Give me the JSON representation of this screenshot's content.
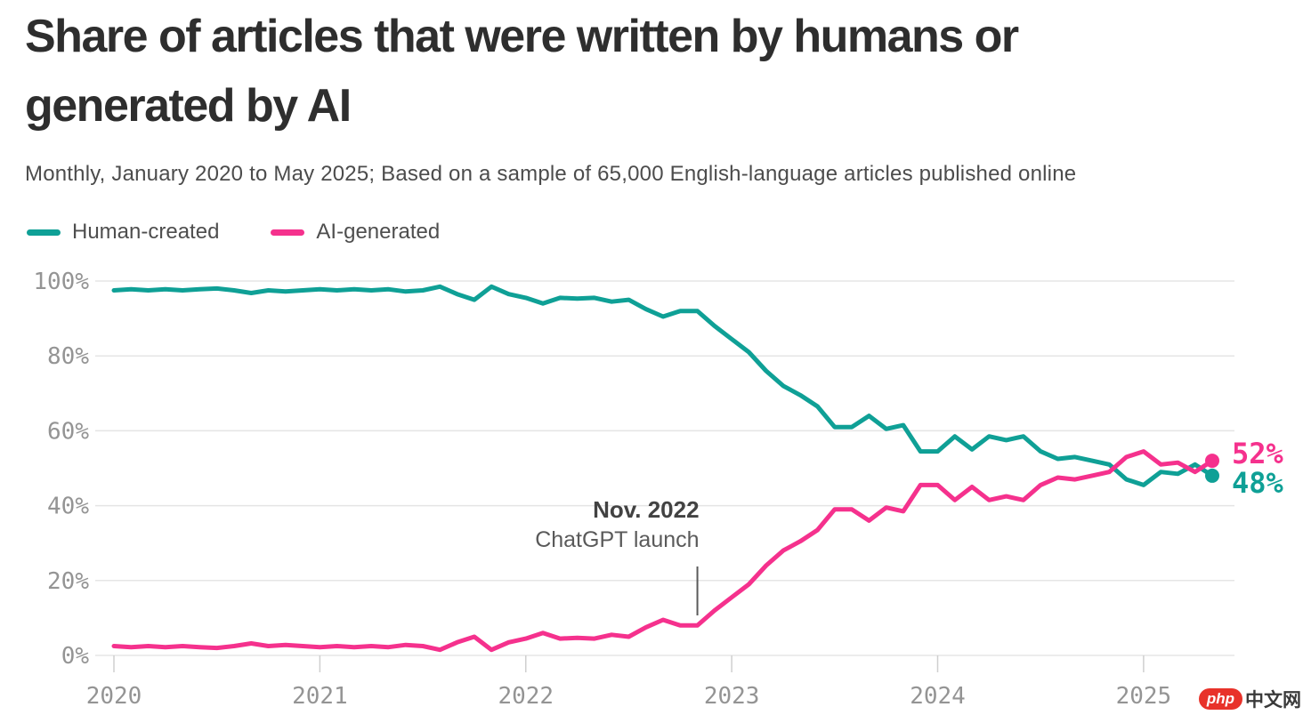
{
  "page": {
    "title": "Share of articles that were written by humans or generated by AI",
    "subtitle": "Monthly, January 2020 to May 2025; Based on a sample of 65,000 English-language articles published online"
  },
  "legend": {
    "items": [
      {
        "label": "Human-created",
        "color": "#0FA096"
      },
      {
        "label": "AI-generated",
        "color": "#F5318D"
      }
    ]
  },
  "annotation": {
    "line1": "Nov. 2022",
    "line2": "ChatGPT launch",
    "x_value": "2022-11"
  },
  "end_labels": [
    {
      "series": "AI-generated",
      "text": "52%",
      "color": "#F5318D"
    },
    {
      "series": "Human-created",
      "text": "48%",
      "color": "#0FA096"
    }
  ],
  "watermark": {
    "badge": "php",
    "text": "中文网"
  },
  "chart_data": {
    "type": "line",
    "title": "Share of articles that were written by humans or generated by AI",
    "subtitle": "Monthly, January 2020 to May 2025; Based on a sample of 65,000 English-language articles published online",
    "xlabel": "",
    "ylabel": "",
    "ylim": [
      0,
      100
    ],
    "grid": "horizontal",
    "legend_position": "top-left",
    "yticks": [
      {
        "value": 100,
        "label": "100%"
      },
      {
        "value": 80,
        "label": "80%"
      },
      {
        "value": 60,
        "label": "60%"
      },
      {
        "value": 40,
        "label": "40%"
      },
      {
        "value": 20,
        "label": "20%"
      },
      {
        "value": 0,
        "label": "0%"
      }
    ],
    "xtick_labels": [
      "2020",
      "2021",
      "2022",
      "2023",
      "2024",
      "2025"
    ],
    "x": [
      "2020-01",
      "2020-02",
      "2020-03",
      "2020-04",
      "2020-05",
      "2020-06",
      "2020-07",
      "2020-08",
      "2020-09",
      "2020-10",
      "2020-11",
      "2020-12",
      "2021-01",
      "2021-02",
      "2021-03",
      "2021-04",
      "2021-05",
      "2021-06",
      "2021-07",
      "2021-08",
      "2021-09",
      "2021-10",
      "2021-11",
      "2021-12",
      "2022-01",
      "2022-02",
      "2022-03",
      "2022-04",
      "2022-05",
      "2022-06",
      "2022-07",
      "2022-08",
      "2022-09",
      "2022-10",
      "2022-11",
      "2022-12",
      "2023-01",
      "2023-02",
      "2023-03",
      "2023-04",
      "2023-05",
      "2023-06",
      "2023-07",
      "2023-08",
      "2023-09",
      "2023-10",
      "2023-11",
      "2023-12",
      "2024-01",
      "2024-02",
      "2024-03",
      "2024-04",
      "2024-05",
      "2024-06",
      "2024-07",
      "2024-08",
      "2024-09",
      "2024-10",
      "2024-11",
      "2024-12",
      "2025-01",
      "2025-02",
      "2025-03",
      "2025-04",
      "2025-05"
    ],
    "series": [
      {
        "name": "Human-created",
        "color": "#0FA096",
        "values": [
          97.5,
          97.8,
          97.5,
          97.8,
          97.5,
          97.8,
          98,
          97.5,
          96.8,
          97.5,
          97.2,
          97.5,
          97.8,
          97.5,
          97.8,
          97.5,
          97.8,
          97.2,
          97.5,
          98.5,
          96.5,
          95,
          98.5,
          96.5,
          95.5,
          94,
          95.5,
          95.3,
          95.5,
          94.5,
          95,
          92.5,
          90.5,
          92,
          92,
          88,
          84.5,
          81,
          76,
          72,
          69.5,
          66.5,
          61,
          61,
          64,
          60.5,
          61.5,
          54.5,
          54.5,
          58.5,
          55,
          58.5,
          57.5,
          58.5,
          54.5,
          52.5,
          53,
          52,
          51,
          47,
          45.5,
          49,
          48.5,
          51,
          48
        ]
      },
      {
        "name": "AI-generated",
        "color": "#F5318D",
        "values": [
          2.5,
          2.2,
          2.5,
          2.2,
          2.5,
          2.2,
          2,
          2.5,
          3.2,
          2.5,
          2.8,
          2.5,
          2.2,
          2.5,
          2.2,
          2.5,
          2.2,
          2.8,
          2.5,
          1.5,
          3.5,
          5,
          1.5,
          3.5,
          4.5,
          6,
          4.5,
          4.7,
          4.5,
          5.5,
          5,
          7.5,
          9.5,
          8,
          8,
          12,
          15.5,
          19,
          24,
          28,
          30.5,
          33.5,
          39,
          39,
          36,
          39.5,
          38.5,
          45.5,
          45.5,
          41.5,
          45,
          41.5,
          42.5,
          41.5,
          45.5,
          47.5,
          47,
          48,
          49,
          53,
          54.5,
          51,
          51.5,
          49,
          52
        ]
      }
    ]
  }
}
